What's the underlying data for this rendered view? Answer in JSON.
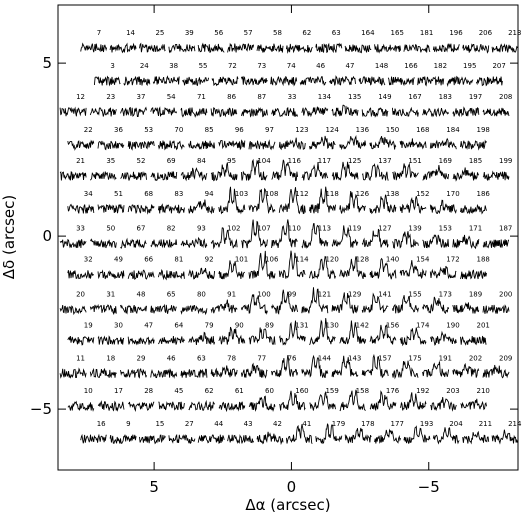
{
  "chart_data": {
    "type": "spectra-map",
    "x_label": "Δα (arcsec)",
    "y_label": "Δδ (arcsec)",
    "xlim": [
      8.5,
      -8.25
    ],
    "ylim": [
      -6.76,
      6.68
    ],
    "xticks": [
      5,
      0,
      {
        "value": -5,
        "label": "−5"
      }
    ],
    "yticks": [
      {
        "value": -5,
        "label": "−5"
      },
      0,
      5
    ],
    "color": "#000000",
    "rows": [
      {
        "y": 5.55,
        "x": [
          7.2,
          6.13,
          5.06,
          3.99,
          2.92,
          1.85,
          0.78,
          -0.29,
          -1.36,
          -2.43,
          -3.5,
          -4.57,
          -5.64,
          -6.71,
          -7.78
        ],
        "labels": [
          "7",
          "14",
          "25",
          "39",
          "56",
          "57",
          "58",
          "62",
          "63",
          "164",
          "165",
          "181",
          "196",
          "206",
          "213"
        ],
        "peak": [
          0,
          0,
          0,
          0,
          0,
          0,
          0,
          0,
          0,
          0,
          0,
          0,
          0,
          0,
          0
        ]
      },
      {
        "y": 4.6,
        "x": [
          6.7,
          5.63,
          4.56,
          3.49,
          2.42,
          1.35,
          0.28,
          -0.79,
          -1.86,
          -2.93,
          -4.0,
          -5.07,
          -6.14,
          -7.21
        ],
        "labels": [
          "3",
          "24",
          "38",
          "55",
          "72",
          "73",
          "74",
          "46",
          "47",
          "148",
          "166",
          "182",
          "195",
          "207"
        ],
        "peak": [
          0,
          0,
          0,
          0,
          0,
          0,
          0,
          0,
          0,
          0,
          0,
          0,
          0,
          0
        ]
      },
      {
        "y": 3.7,
        "x": [
          7.95,
          6.85,
          5.75,
          4.65,
          3.55,
          2.45,
          1.35,
          0.25,
          -0.85,
          -1.95,
          -3.05,
          -4.15,
          -5.25,
          -6.35,
          -7.45
        ],
        "labels": [
          "12",
          "23",
          "37",
          "54",
          "71",
          "86",
          "87",
          "33",
          "134",
          "135",
          "149",
          "167",
          "183",
          "197",
          "208"
        ],
        "peak": [
          0,
          0,
          0,
          0,
          0,
          0,
          0,
          0,
          0.2,
          0.2,
          0,
          0,
          0,
          0,
          0
        ]
      },
      {
        "y": 2.75,
        "x": [
          7.67,
          6.57,
          5.47,
          4.37,
          3.27,
          2.17,
          1.07,
          -0.03,
          -1.13,
          -2.23,
          -3.33,
          -4.43,
          -5.53,
          -6.63
        ],
        "labels": [
          "22",
          "36",
          "53",
          "70",
          "85",
          "96",
          "97",
          "123",
          "124",
          "136",
          "150",
          "168",
          "184",
          "198"
        ],
        "peak": [
          0,
          0,
          0,
          0,
          0,
          0,
          0,
          0.3,
          0.3,
          0.3,
          0.3,
          0.2,
          0.2,
          0
        ]
      },
      {
        "y": 1.85,
        "x": [
          7.95,
          6.85,
          5.75,
          4.65,
          3.55,
          2.45,
          1.35,
          0.25,
          -0.85,
          -1.95,
          -3.05,
          -4.15,
          -5.25,
          -6.35,
          -7.45
        ],
        "labels": [
          "21",
          "35",
          "52",
          "69",
          "84",
          "95",
          "104",
          "116",
          "117",
          "125",
          "137",
          "151",
          "169",
          "185",
          "199"
        ],
        "peak": [
          0,
          0,
          0,
          0,
          0.2,
          0.5,
          0.8,
          0.7,
          0.6,
          0.6,
          0.5,
          0.5,
          0.4,
          0.3,
          0
        ]
      },
      {
        "y": 0.9,
        "x": [
          7.67,
          6.57,
          5.47,
          4.37,
          3.27,
          2.17,
          1.07,
          -0.03,
          -1.13,
          -2.23,
          -3.33,
          -4.43,
          -5.53,
          -6.63
        ],
        "labels": [
          "34",
          "51",
          "68",
          "83",
          "94",
          "103",
          "108",
          "112",
          "118",
          "126",
          "138",
          "152",
          "170",
          "186"
        ],
        "peak": [
          0,
          0,
          0,
          0,
          0.3,
          0.9,
          1,
          1,
          0.9,
          0.8,
          0.6,
          0.5,
          0.3,
          0
        ]
      },
      {
        "y": -0.1,
        "x": [
          7.95,
          6.85,
          5.75,
          4.65,
          3.55,
          2.45,
          1.35,
          0.25,
          -0.85,
          -1.95,
          -3.05,
          -4.15,
          -5.25,
          -6.35,
          -7.45
        ],
        "labels": [
          "33",
          "50",
          "67",
          "82",
          "93",
          "102",
          "107",
          "110",
          "113",
          "119",
          "127",
          "139",
          "153",
          "171",
          "187"
        ],
        "peak": [
          0,
          0,
          0,
          0,
          0.2,
          0.7,
          1,
          1,
          1,
          0.8,
          0.6,
          0.5,
          0.4,
          0.3,
          0
        ]
      },
      {
        "y": -1.0,
        "x": [
          7.67,
          6.57,
          5.47,
          4.37,
          3.27,
          2.17,
          1.07,
          -0.03,
          -1.13,
          -2.23,
          -3.33,
          -4.43,
          -5.53,
          -6.63
        ],
        "labels": [
          "32",
          "49",
          "66",
          "81",
          "92",
          "101",
          "106",
          "114",
          "120",
          "128",
          "140",
          "154",
          "172",
          "188"
        ],
        "peak": [
          0,
          0,
          0,
          0,
          0.2,
          0.6,
          1,
          1,
          0.9,
          0.8,
          0.7,
          0.5,
          0.3,
          0
        ]
      },
      {
        "y": -2.0,
        "x": [
          7.95,
          6.85,
          5.75,
          4.65,
          3.55,
          2.45,
          1.35,
          0.25,
          -0.85,
          -1.95,
          -3.05,
          -4.15,
          -5.25,
          -6.35,
          -7.45
        ],
        "labels": [
          "20",
          "31",
          "48",
          "65",
          "80",
          "91",
          "100",
          "99",
          "121",
          "129",
          "141",
          "155",
          "173",
          "189",
          "200"
        ],
        "peak": [
          0,
          0,
          0,
          0,
          0,
          0.3,
          0.7,
          0.9,
          0.9,
          0.8,
          0.7,
          0.6,
          0.4,
          0.2,
          0
        ]
      },
      {
        "y": -2.9,
        "x": [
          7.67,
          6.57,
          5.47,
          4.37,
          3.27,
          2.17,
          1.07,
          -0.03,
          -1.13,
          -2.23,
          -3.33,
          -4.43,
          -5.53,
          -6.63
        ],
        "labels": [
          "19",
          "30",
          "47",
          "64",
          "79",
          "90",
          "89",
          "131",
          "130",
          "142",
          "156",
          "174",
          "190",
          "201"
        ],
        "peak": [
          0,
          0,
          0,
          0,
          0.2,
          0.5,
          0.6,
          0.9,
          0.9,
          0.8,
          0.7,
          0.5,
          0.3,
          0
        ]
      },
      {
        "y": -3.85,
        "x": [
          7.95,
          6.85,
          5.75,
          4.65,
          3.55,
          2.45,
          1.35,
          0.25,
          -0.85,
          -1.95,
          -3.05,
          -4.15,
          -5.25,
          -6.35,
          -7.45
        ],
        "labels": [
          "11",
          "18",
          "29",
          "46",
          "63",
          "78",
          "77",
          "76",
          "144",
          "143",
          "157",
          "175",
          "191",
          "202",
          "209"
        ],
        "peak": [
          0,
          0,
          0,
          0,
          0,
          0.2,
          0.3,
          0.7,
          0.9,
          0.8,
          0.7,
          0.6,
          0.5,
          0.3,
          0.2
        ]
      },
      {
        "y": -4.8,
        "x": [
          7.67,
          6.57,
          5.47,
          4.37,
          3.27,
          2.17,
          1.07,
          -0.03,
          -1.13,
          -2.23,
          -3.33,
          -4.43,
          -5.53,
          -6.63
        ],
        "labels": [
          "10",
          "17",
          "28",
          "45",
          "62",
          "61",
          "60",
          "160",
          "159",
          "158",
          "176",
          "192",
          "203",
          "210"
        ],
        "peak": [
          0,
          0,
          0,
          0,
          0,
          0,
          0.3,
          0.6,
          0.7,
          0.7,
          0.6,
          0.5,
          0.3,
          0.2
        ]
      },
      {
        "y": -5.75,
        "x": [
          7.2,
          6.13,
          5.06,
          3.99,
          2.92,
          1.85,
          0.78,
          -0.29,
          -1.36,
          -2.43,
          -3.5,
          -4.57,
          -5.64,
          -6.71,
          -7.78
        ],
        "labels": [
          "16",
          "9",
          "15",
          "27",
          "44",
          "43",
          "42",
          "41",
          "179",
          "178",
          "177",
          "193",
          "204",
          "211",
          "214"
        ],
        "peak": [
          0,
          0,
          0,
          0,
          0,
          0,
          0.2,
          0.6,
          0.6,
          0.6,
          0.5,
          0.5,
          0.4,
          0.3,
          0.3
        ]
      }
    ]
  }
}
